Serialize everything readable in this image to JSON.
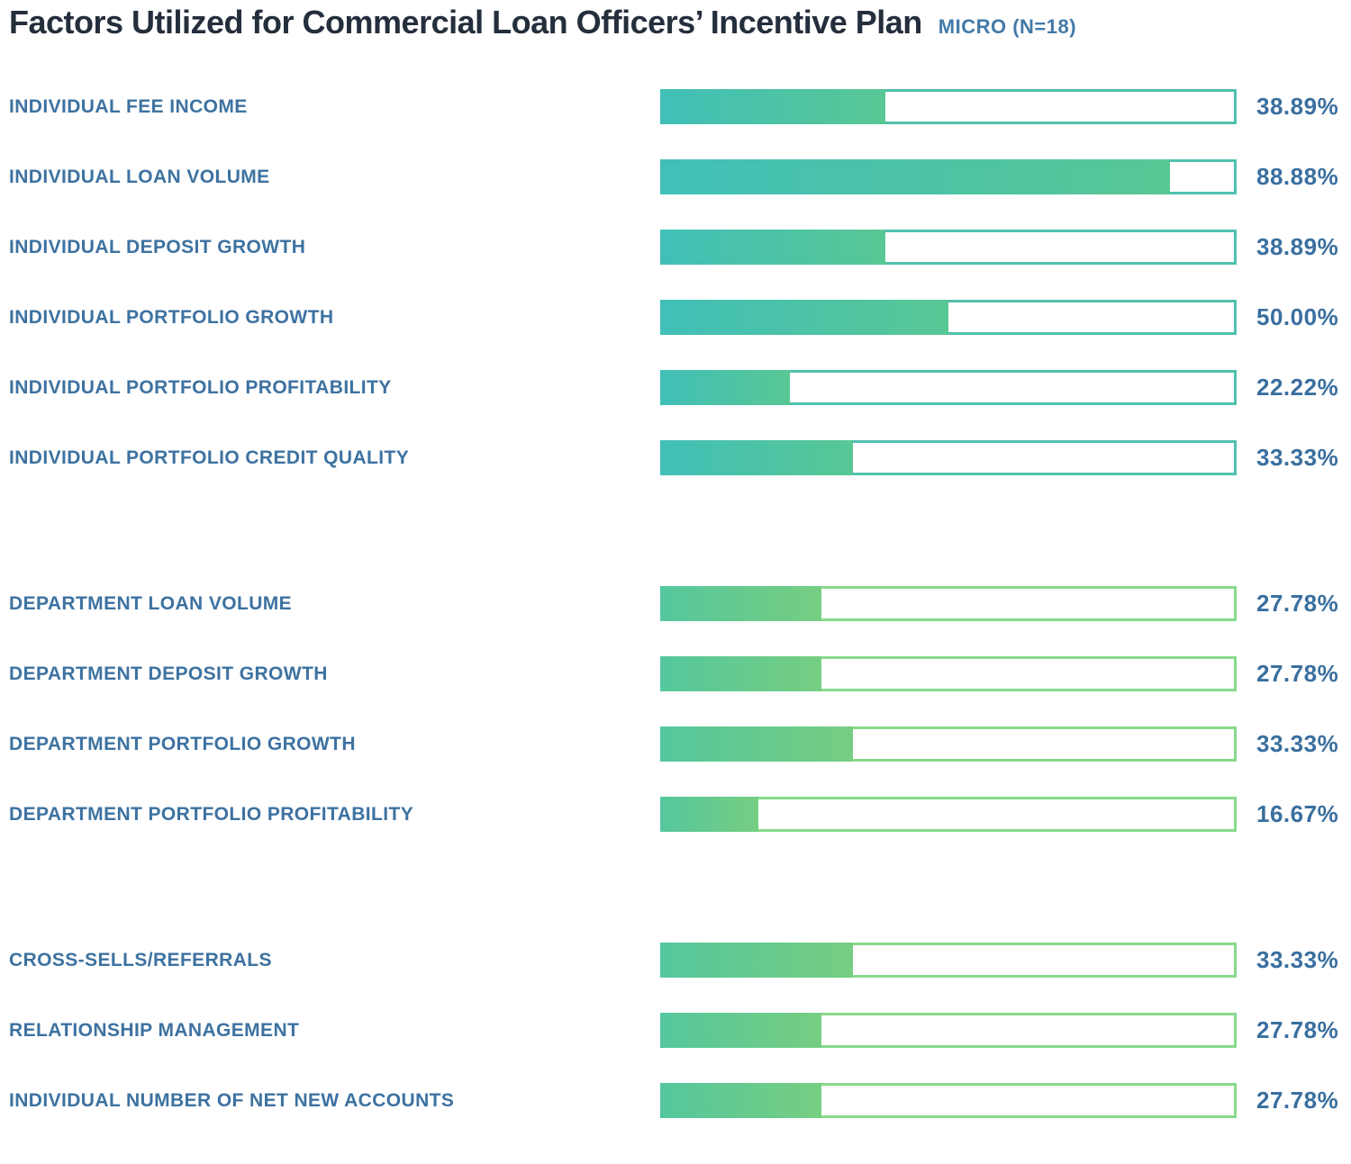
{
  "header": {
    "title": "Factors Utilized for Commercial Loan Officers’ Incentive Plan",
    "tag": "MICRO (N=18)"
  },
  "colors": {
    "title_text": "#242e3c",
    "tag_text": "#4379a8",
    "label_text": "#3d72a1",
    "value_text": "#3a6f9f",
    "track_background": "#ffffff"
  },
  "chart_data": {
    "type": "bar",
    "orientation": "horizontal",
    "title": "Factors Utilized for Commercial Loan Officers’ Incentive Plan",
    "subtitle": "MICRO (N=18)",
    "sample_size": 18,
    "value_unit": "percent",
    "xlim": [
      0,
      100
    ],
    "grid": false,
    "legend": false,
    "groups": [
      {
        "name": "individual-factors",
        "fill_start": "#41bfb8",
        "fill_end": "#58c794",
        "track_border": "#4fc0ad",
        "rows": [
          {
            "label": "INDIVIDUAL FEE INCOME",
            "value": 38.89,
            "display": "38.89%"
          },
          {
            "label": "INDIVIDUAL LOAN VOLUME",
            "value": 88.88,
            "display": "88.88%"
          },
          {
            "label": "INDIVIDUAL DEPOSIT GROWTH",
            "value": 38.89,
            "display": "38.89%"
          },
          {
            "label": "INDIVIDUAL PORTFOLIO GROWTH",
            "value": 50.0,
            "display": "50.00%"
          },
          {
            "label": "INDIVIDUAL PORTFOLIO PROFITABILITY",
            "value": 22.22,
            "display": "22.22%"
          },
          {
            "label": "INDIVIDUAL PORTFOLIO CREDIT QUALITY",
            "value": 33.33,
            "display": "33.33%"
          }
        ]
      },
      {
        "name": "department-factors",
        "fill_start": "#55c79d",
        "fill_end": "#76ce81",
        "track_border": "#87da8c",
        "rows": [
          {
            "label": "DEPARTMENT LOAN VOLUME",
            "value": 27.78,
            "display": "27.78%"
          },
          {
            "label": "DEPARTMENT DEPOSIT GROWTH",
            "value": 27.78,
            "display": "27.78%"
          },
          {
            "label": "DEPARTMENT PORTFOLIO GROWTH",
            "value": 33.33,
            "display": "33.33%"
          },
          {
            "label": "DEPARTMENT PORTFOLIO PROFITABILITY",
            "value": 16.67,
            "display": "16.67%"
          }
        ]
      },
      {
        "name": "other-factors",
        "fill_start": "#55c79d",
        "fill_end": "#76ce81",
        "track_border": "#87da8c",
        "rows": [
          {
            "label": "CROSS-SELLS/REFERRALS",
            "value": 33.33,
            "display": "33.33%"
          },
          {
            "label": "RELATIONSHIP MANAGEMENT",
            "value": 27.78,
            "display": "27.78%"
          },
          {
            "label": "INDIVIDUAL NUMBER OF NET NEW ACCOUNTS",
            "value": 27.78,
            "display": "27.78%"
          }
        ]
      }
    ]
  }
}
